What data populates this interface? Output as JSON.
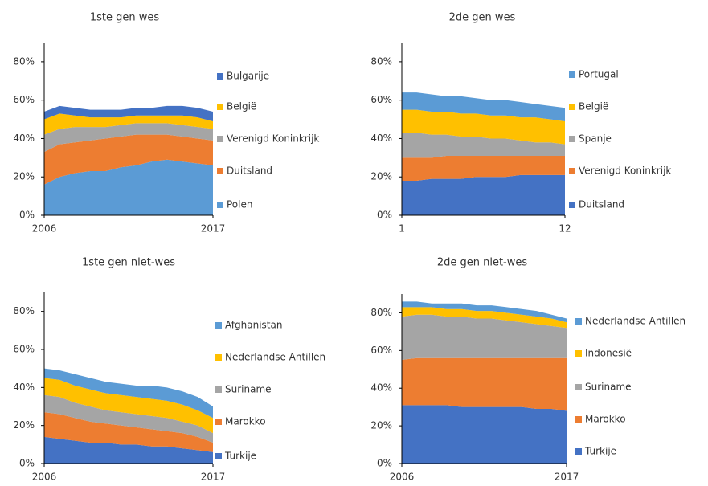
{
  "chart_data": [
    {
      "type": "area",
      "title": "1ste gen wes",
      "x": [
        2006,
        2007,
        2008,
        2009,
        2010,
        2011,
        2012,
        2013,
        2014,
        2015,
        2016,
        2017
      ],
      "xlim": [
        2006,
        2017
      ],
      "xticks": [
        2006,
        2017
      ],
      "ylim": [
        0,
        90
      ],
      "yticks": [
        {
          "value": 0,
          "label": "0%"
        },
        {
          "value": 20,
          "label": "20%"
        },
        {
          "value": 40,
          "label": "40%"
        },
        {
          "value": 60,
          "label": "60%"
        },
        {
          "value": 80,
          "label": "80%"
        }
      ],
      "series": [
        {
          "name": "Polen",
          "color": "#5b9bd5",
          "values": [
            16,
            20,
            22,
            23,
            23,
            25,
            26,
            28,
            29,
            28,
            27,
            26
          ]
        },
        {
          "name": "Duitsland",
          "color": "#ed7d31",
          "values": [
            17,
            17,
            16,
            16,
            17,
            16,
            16,
            14,
            13,
            13,
            13,
            13
          ]
        },
        {
          "name": "Verenigd Koninkrijk",
          "color": "#a5a5a5",
          "values": [
            9,
            8,
            8,
            7,
            6,
            6,
            6,
            6,
            6,
            6,
            6,
            6
          ]
        },
        {
          "name": "België",
          "color": "#ffc000",
          "values": [
            8,
            8,
            6,
            5,
            5,
            4,
            4,
            4,
            4,
            5,
            5,
            4
          ]
        },
        {
          "name": "Bulgarije",
          "color": "#4472c4",
          "values": [
            4,
            4,
            4,
            4,
            4,
            4,
            4,
            4,
            5,
            5,
            5,
            5
          ]
        }
      ]
    },
    {
      "type": "area",
      "title": "2de gen wes",
      "x": [
        1,
        2,
        3,
        4,
        5,
        6,
        7,
        8,
        9,
        10,
        11,
        12
      ],
      "xlim": [
        1,
        12
      ],
      "xticks": [
        1,
        12
      ],
      "ylim": [
        0,
        90
      ],
      "yticks": [
        {
          "value": 0,
          "label": "0%"
        },
        {
          "value": 20,
          "label": "20%"
        },
        {
          "value": 40,
          "label": "40%"
        },
        {
          "value": 60,
          "label": "60%"
        },
        {
          "value": 80,
          "label": "80%"
        }
      ],
      "series": [
        {
          "name": "Duitsland",
          "color": "#4472c4",
          "values": [
            18,
            18,
            19,
            19,
            19,
            20,
            20,
            20,
            21,
            21,
            21,
            21
          ]
        },
        {
          "name": "Verenigd Koninkrijk",
          "color": "#ed7d31",
          "values": [
            12,
            12,
            11,
            12,
            12,
            11,
            11,
            11,
            10,
            10,
            10,
            10
          ]
        },
        {
          "name": "Spanje",
          "color": "#a5a5a5",
          "values": [
            13,
            13,
            12,
            11,
            10,
            10,
            9,
            9,
            8,
            7,
            7,
            6
          ]
        },
        {
          "name": "België",
          "color": "#ffc000",
          "values": [
            12,
            12,
            12,
            12,
            12,
            12,
            12,
            12,
            12,
            13,
            12,
            12
          ]
        },
        {
          "name": "Portugal",
          "color": "#5b9bd5",
          "values": [
            9,
            9,
            9,
            8,
            9,
            8,
            8,
            8,
            8,
            7,
            7,
            7
          ]
        }
      ]
    },
    {
      "type": "area",
      "title": "1ste gen niet-wes",
      "x": [
        2006,
        2007,
        2008,
        2009,
        2010,
        2011,
        2012,
        2013,
        2014,
        2015,
        2016,
        2017
      ],
      "xlim": [
        2006,
        2017
      ],
      "xticks": [
        2006,
        2017
      ],
      "ylim": [
        0,
        90
      ],
      "yticks": [
        {
          "value": 0,
          "label": "0%"
        },
        {
          "value": 20,
          "label": "20%"
        },
        {
          "value": 40,
          "label": "40%"
        },
        {
          "value": 60,
          "label": "60%"
        },
        {
          "value": 80,
          "label": "80%"
        }
      ],
      "series": [
        {
          "name": "Turkije",
          "color": "#4472c4",
          "values": [
            14,
            13,
            12,
            11,
            11,
            10,
            10,
            9,
            9,
            8,
            7,
            6
          ]
        },
        {
          "name": "Marokko",
          "color": "#ed7d31",
          "values": [
            13,
            13,
            12,
            11,
            10,
            10,
            9,
            9,
            8,
            8,
            7,
            5
          ]
        },
        {
          "name": "Suriname",
          "color": "#a5a5a5",
          "values": [
            9,
            9,
            8,
            8,
            7,
            7,
            7,
            7,
            7,
            6,
            6,
            5
          ]
        },
        {
          "name": "Nederlandse Antillen",
          "color": "#ffc000",
          "values": [
            9,
            9,
            9,
            9,
            9,
            9,
            9,
            9,
            9,
            9,
            8,
            8
          ]
        },
        {
          "name": "Afghanistan",
          "color": "#5b9bd5",
          "values": [
            5,
            5,
            6,
            6,
            6,
            6,
            6,
            7,
            7,
            7,
            7,
            6
          ]
        }
      ]
    },
    {
      "type": "area",
      "title": "2de gen niet-wes",
      "x": [
        2006,
        2007,
        2008,
        2009,
        2010,
        2011,
        2012,
        2013,
        2014,
        2015,
        2016,
        2017
      ],
      "xlim": [
        2006,
        2017
      ],
      "xticks": [
        2006,
        2017
      ],
      "ylim": [
        0,
        90
      ],
      "yticks": [
        {
          "value": 0,
          "label": "0%"
        },
        {
          "value": 20,
          "label": "20%"
        },
        {
          "value": 40,
          "label": "40%"
        },
        {
          "value": 60,
          "label": "60%"
        },
        {
          "value": 80,
          "label": "80%"
        }
      ],
      "series": [
        {
          "name": "Turkije",
          "color": "#4472c4",
          "values": [
            31,
            31,
            31,
            31,
            30,
            30,
            30,
            30,
            30,
            29,
            29,
            28
          ]
        },
        {
          "name": "Marokko",
          "color": "#ed7d31",
          "values": [
            24,
            25,
            25,
            25,
            26,
            26,
            26,
            26,
            26,
            27,
            27,
            28
          ]
        },
        {
          "name": "Suriname",
          "color": "#a5a5a5",
          "values": [
            23,
            23,
            23,
            22,
            22,
            21,
            21,
            20,
            19,
            18,
            17,
            16
          ]
        },
        {
          "name": "Indonesië",
          "color": "#ffc000",
          "values": [
            5,
            4,
            4,
            4,
            4,
            4,
            4,
            4,
            4,
            4,
            4,
            3
          ]
        },
        {
          "name": "Nederlandse Antillen",
          "color": "#5b9bd5",
          "values": [
            3,
            3,
            2,
            3,
            3,
            3,
            3,
            3,
            3,
            3,
            2,
            2
          ]
        }
      ]
    }
  ]
}
